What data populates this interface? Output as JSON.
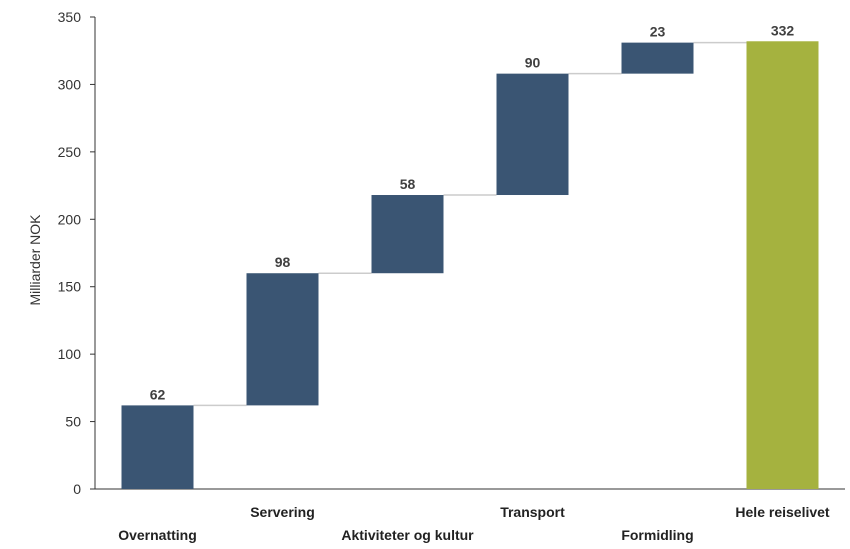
{
  "chart_data": {
    "type": "bar",
    "subtype": "waterfall",
    "ylabel": "Milliarder NOK",
    "ylim": [
      0,
      350
    ],
    "yticks": [
      0,
      50,
      100,
      150,
      200,
      250,
      300,
      350
    ],
    "grid": false,
    "categories": [
      "Overnatting",
      "Servering",
      "Aktiviteter og kultur",
      "Transport",
      "Formidling",
      "Hele reiselivet"
    ],
    "values": [
      62,
      98,
      58,
      90,
      23,
      332
    ],
    "is_total": [
      false,
      false,
      false,
      false,
      false,
      true
    ],
    "colors": {
      "increment": "#3a5573",
      "total": "#a5b23f",
      "connector": "#cccccc",
      "axis": "#333333"
    }
  }
}
